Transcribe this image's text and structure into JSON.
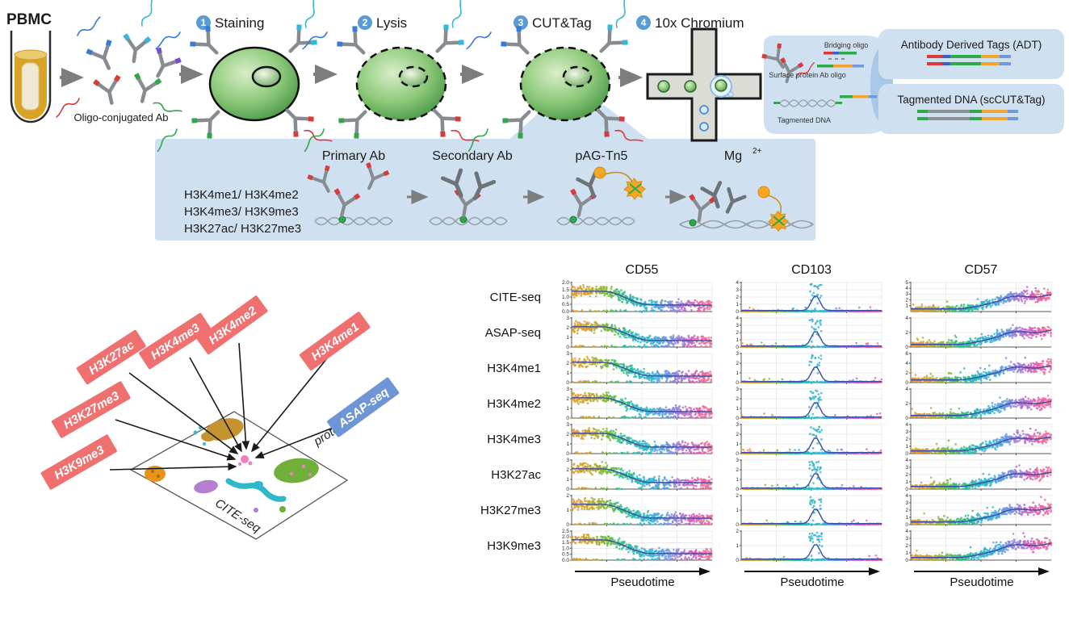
{
  "workflow": {
    "pbmc_label": "PBMC",
    "oligo_ab_label": "Oligo-conjugated Ab",
    "steps": [
      {
        "num": "1",
        "label": "Staining"
      },
      {
        "num": "2",
        "label": "Lysis"
      },
      {
        "num": "3",
        "label": "CUT&Tag"
      },
      {
        "num": "4",
        "label": "10x Chromium"
      }
    ],
    "droplet": {
      "bridging_oligo": "Bridging oligo",
      "surface_ab_oligo": "Surface protein Ab oligo",
      "tagmented_dna": "Tagmented DNA"
    },
    "legend": {
      "adt_label": "Antibody Derived Tags (ADT)",
      "adt_bar_colors": [
        "#d93b3b",
        "#3a5fc9",
        "#2fa84c",
        "#f2a52e",
        "#6f9ad9"
      ],
      "cuttag_label": "Tagmented DNA (scCUT&Tag)",
      "cuttag_bar_colors": [
        "#2fa84c",
        "#8a8f94",
        "#2fa84c",
        "#f2a52e",
        "#6f9ad9"
      ]
    }
  },
  "cuttag_panel": {
    "histone_pairs": [
      "H3K4me1/ H3K4me2",
      "H3K4me3/ H3K9me3",
      "H3K27ac/ H3K27me3"
    ],
    "steps": [
      "Primary Ab",
      "Secondary Ab",
      "pAG-Tn5"
    ],
    "mg_base": "Mg",
    "mg_sup": "2+",
    "panel_color": "#cfe0f1"
  },
  "modality_map": {
    "red_labels": [
      "H3K27ac",
      "H3K4me3",
      "H3K4me2",
      "H3K4me1",
      "H3K27me3",
      "H3K9me3"
    ],
    "blue_label": "ASAP-seq",
    "plane_labels": {
      "protein": "protein",
      "cite_seq": "CITE-seq"
    },
    "label_red_color": "#f07070",
    "label_blue_color": "#6e96d6"
  },
  "palette": {
    "panel_blue": "#cfe0f1",
    "step_circle_blue": "#5b9bd5",
    "cell_green": "#5faf52",
    "tn5_orange": "#f5a623",
    "antibody_gray": "#878c91",
    "tip_blue": "#3a7bd5",
    "tip_cyan": "#35b8d9",
    "tip_purple": "#7a4fc9",
    "tip_green": "#2fa849",
    "tip_red": "#d93a3a"
  },
  "chart_data": {
    "type": "scatter",
    "columns": [
      "CD55",
      "CD103",
      "CD57"
    ],
    "x_label": "Pseudotime",
    "x_axis_note": "cells ordered by pseudotime; no numeric x tick labels, arrow shows direction",
    "point_color_encoding": "pseudotime gradient: orange → olive → green → teal → cyan → blue → purple → magenta → pink",
    "point_gradient": [
      "#e09c2c",
      "#cba32a",
      "#a3b132",
      "#6cbd43",
      "#37c07f",
      "#2abda4",
      "#2fb8c4",
      "#3bb4d8",
      "#5e9ee2",
      "#8d88dd",
      "#b96ecf",
      "#e05cab",
      "#ef6d9b"
    ],
    "trend_line_color": "#3c4ca8",
    "trend_by_column": {
      "CD55": "decreasing",
      "CD103": "peak",
      "CD57": "increasing"
    },
    "rows": [
      {
        "label": "CITE-seq",
        "panels": [
          {
            "col": "CD55",
            "ymax": 2.0,
            "yticks": [
              0.0,
              0.5,
              1.0,
              1.5,
              2.0
            ]
          },
          {
            "col": "CD103",
            "ymax": 4,
            "yticks": [
              0,
              1,
              2,
              3,
              4
            ]
          },
          {
            "col": "CD57",
            "ymax": 5,
            "yticks": [
              1,
              2,
              3,
              4,
              5
            ]
          }
        ]
      },
      {
        "label": "ASAP-seq",
        "panels": [
          {
            "col": "CD55",
            "ymax": 3,
            "yticks": [
              0,
              1,
              2,
              3
            ]
          },
          {
            "col": "CD103",
            "ymax": 4,
            "yticks": [
              0,
              1,
              2,
              3,
              4
            ]
          },
          {
            "col": "CD57",
            "ymax": 4,
            "yticks": [
              0,
              2,
              4
            ]
          }
        ]
      },
      {
        "label": "H3K4me1",
        "panels": [
          {
            "col": "CD55",
            "ymax": 3,
            "yticks": [
              0,
              1,
              2,
              3
            ]
          },
          {
            "col": "CD103",
            "ymax": 3,
            "yticks": [
              0,
              1,
              2,
              3
            ]
          },
          {
            "col": "CD57",
            "ymax": 6,
            "yticks": [
              0,
              2,
              4,
              6
            ]
          }
        ]
      },
      {
        "label": "H3K4me2",
        "panels": [
          {
            "col": "CD55",
            "ymax": 3,
            "yticks": [
              0,
              1,
              2,
              3
            ]
          },
          {
            "col": "CD103",
            "ymax": 3,
            "yticks": [
              0,
              1,
              2,
              3
            ]
          },
          {
            "col": "CD57",
            "ymax": 4,
            "yticks": [
              0,
              2,
              4
            ]
          }
        ]
      },
      {
        "label": "H3K4me3",
        "panels": [
          {
            "col": "CD55",
            "ymax": 3,
            "yticks": [
              0,
              1,
              2,
              3
            ]
          },
          {
            "col": "CD103",
            "ymax": 3,
            "yticks": [
              0,
              1,
              2,
              3
            ]
          },
          {
            "col": "CD57",
            "ymax": 4,
            "yticks": [
              0,
              1,
              2,
              3,
              4
            ]
          }
        ]
      },
      {
        "label": "H3K27ac",
        "panels": [
          {
            "col": "CD55",
            "ymax": 3,
            "yticks": [
              0,
              1,
              2,
              3
            ]
          },
          {
            "col": "CD103",
            "ymax": 3,
            "yticks": [
              0,
              1,
              2,
              3
            ]
          },
          {
            "col": "CD57",
            "ymax": 4,
            "yticks": [
              0,
              1,
              2,
              3,
              4
            ]
          }
        ]
      },
      {
        "label": "H3K27me3",
        "panels": [
          {
            "col": "CD55",
            "ymax": 2,
            "yticks": [
              0,
              1,
              2
            ]
          },
          {
            "col": "CD103",
            "ymax": 2,
            "yticks": [
              0,
              1,
              2
            ]
          },
          {
            "col": "CD57",
            "ymax": 4,
            "yticks": [
              0,
              1,
              2,
              3,
              4
            ]
          }
        ]
      },
      {
        "label": "H3K9me3",
        "panels": [
          {
            "col": "CD55",
            "ymax": 2.5,
            "yticks": [
              0.0,
              0.5,
              1.0,
              1.5,
              2.0,
              2.5
            ]
          },
          {
            "col": "CD103",
            "ymax": 2,
            "yticks": [
              0,
              1,
              2
            ]
          },
          {
            "col": "CD57",
            "ymax": 4,
            "yticks": [
              0,
              1,
              2,
              3,
              4
            ]
          }
        ]
      }
    ]
  }
}
